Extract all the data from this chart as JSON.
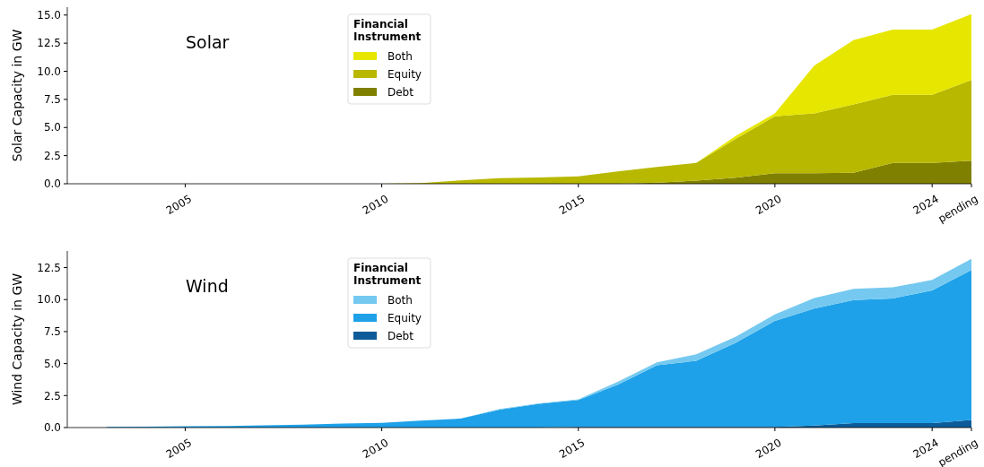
{
  "chart_data": [
    {
      "type": "area",
      "title": "Solar",
      "ylabel": "Solar Capacity in GW",
      "legend_title": "Financial Instrument",
      "legend": "top",
      "stacked": true,
      "x": [
        2003,
        2004,
        2005,
        2006,
        2007,
        2008,
        2009,
        2010,
        2011,
        2012,
        2013,
        2014,
        2015,
        2016,
        2017,
        2018,
        2019,
        2020,
        2021,
        2022,
        2023,
        2024,
        2025
      ],
      "xlim": [
        2002,
        2025
      ],
      "xticks": [
        2005,
        2010,
        2015,
        2020,
        2024,
        {
          "value": 2025,
          "label": "pending"
        }
      ],
      "ylim": [
        0,
        15.7
      ],
      "yticks": [
        {
          "value": 0,
          "label": "0.0"
        },
        {
          "value": 2.5,
          "label": "2.5"
        },
        {
          "value": 5,
          "label": "5.0"
        },
        {
          "value": 7.5,
          "label": "7.5"
        },
        {
          "value": 10,
          "label": "10.0"
        },
        {
          "value": 12.5,
          "label": "12.5"
        },
        {
          "value": 15,
          "label": "15.0"
        }
      ],
      "series": [
        {
          "name": "Debt",
          "color": "#808000",
          "values": [
            0,
            0,
            0,
            0,
            0,
            0,
            0,
            0,
            0,
            0,
            0,
            0,
            0,
            0,
            0.1,
            0.27,
            0.53,
            0.93,
            0.93,
            0.98,
            1.86,
            1.86,
            2.05
          ]
        },
        {
          "name": "Equity",
          "color": "#b8b800",
          "values": [
            0,
            0,
            0,
            0,
            0,
            0,
            0,
            0,
            0.05,
            0.3,
            0.5,
            0.55,
            0.65,
            1.1,
            1.4,
            1.58,
            3.46,
            5.06,
            5.32,
            6.07,
            6.04,
            6.04,
            7.18
          ]
        },
        {
          "name": "Both",
          "color": "#e6e600",
          "values": [
            0,
            0,
            0,
            0,
            0,
            0,
            0,
            0,
            0,
            0,
            0,
            0,
            0,
            0,
            0,
            0,
            0.26,
            0.26,
            4.25,
            5.72,
            5.8,
            5.8,
            5.85
          ]
        }
      ]
    },
    {
      "type": "area",
      "title": "Wind",
      "ylabel": "Wind Capacity in GW",
      "legend_title": "Financial Instrument",
      "legend": "top",
      "stacked": true,
      "x": [
        2003,
        2004,
        2005,
        2006,
        2007,
        2008,
        2009,
        2010,
        2011,
        2012,
        2013,
        2014,
        2015,
        2016,
        2017,
        2018,
        2019,
        2020,
        2021,
        2022,
        2023,
        2024,
        2025
      ],
      "xlim": [
        2002,
        2025
      ],
      "xticks": [
        2005,
        2010,
        2015,
        2020,
        2024,
        {
          "value": 2025,
          "label": "pending"
        }
      ],
      "ylim": [
        0,
        13.8
      ],
      "yticks": [
        {
          "value": 0,
          "label": "0.0"
        },
        {
          "value": 2.5,
          "label": "2.5"
        },
        {
          "value": 5,
          "label": "5.0"
        },
        {
          "value": 7.5,
          "label": "7.5"
        },
        {
          "value": 10,
          "label": "10.0"
        },
        {
          "value": 12.5,
          "label": "12.5"
        }
      ],
      "series": [
        {
          "name": "Debt",
          "color": "#0d5c99",
          "values": [
            0,
            0,
            0,
            0,
            0,
            0,
            0,
            0,
            0,
            0,
            0,
            0,
            0.05,
            0.05,
            0.05,
            0.05,
            0.05,
            0.05,
            0.15,
            0.35,
            0.35,
            0.35,
            0.6
          ]
        },
        {
          "name": "Equity",
          "color": "#1ea1e8",
          "values": [
            0.05,
            0.07,
            0.1,
            0.12,
            0.17,
            0.22,
            0.32,
            0.37,
            0.55,
            0.7,
            1.4,
            1.85,
            2.1,
            3.3,
            4.82,
            5.17,
            6.57,
            8.28,
            9.15,
            9.62,
            9.74,
            10.37,
            11.71
          ]
        },
        {
          "name": "Both",
          "color": "#75c9f0",
          "values": [
            0,
            0,
            0,
            0,
            0,
            0,
            0,
            0,
            0,
            0,
            0.05,
            0.05,
            0.05,
            0.23,
            0.23,
            0.5,
            0.47,
            0.52,
            0.83,
            0.87,
            0.87,
            0.82,
            0.87
          ]
        }
      ]
    }
  ]
}
